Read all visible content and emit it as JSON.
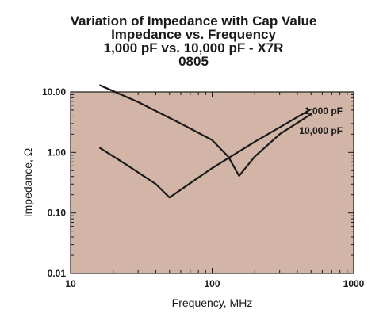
{
  "chart_data": {
    "type": "line",
    "title_lines": [
      "Variation of Impedance with Cap Value",
      "Impedance vs. Frequency",
      "1,000 pF vs. 10,000 pF - X7R",
      "0805"
    ],
    "xlabel": "Frequency, MHz",
    "ylabel": "Impedance, Ω",
    "xscale": "log",
    "yscale": "log",
    "xlim": [
      10,
      1000
    ],
    "ylim": [
      0.01,
      10
    ],
    "x_ticks": [
      10,
      100,
      1000
    ],
    "x_tick_labels": [
      "10",
      "100",
      "1000"
    ],
    "y_ticks": [
      0.01,
      0.1,
      1,
      10
    ],
    "y_tick_labels": [
      "0.01",
      "0.10",
      "1.00",
      "10.00"
    ],
    "grid": false,
    "plot_background": "#d2b5a6",
    "series": [
      {
        "name": "1,000 pF",
        "color": "#1a1a1a",
        "points": [
          {
            "x": 16,
            "y": 13
          },
          {
            "x": 30,
            "y": 6.8
          },
          {
            "x": 60,
            "y": 3.0
          },
          {
            "x": 100,
            "y": 1.6
          },
          {
            "x": 130,
            "y": 0.85
          },
          {
            "x": 155,
            "y": 0.41
          },
          {
            "x": 200,
            "y": 0.85
          },
          {
            "x": 300,
            "y": 2.0
          },
          {
            "x": 500,
            "y": 4.3
          }
        ]
      },
      {
        "name": "10,000 pF",
        "color": "#1a1a1a",
        "points": [
          {
            "x": 16,
            "y": 1.2
          },
          {
            "x": 25,
            "y": 0.62
          },
          {
            "x": 40,
            "y": 0.3
          },
          {
            "x": 50,
            "y": 0.18
          },
          {
            "x": 70,
            "y": 0.31
          },
          {
            "x": 100,
            "y": 0.55
          },
          {
            "x": 200,
            "y": 1.5
          },
          {
            "x": 300,
            "y": 2.6
          },
          {
            "x": 500,
            "y": 5.2
          }
        ]
      }
    ]
  }
}
